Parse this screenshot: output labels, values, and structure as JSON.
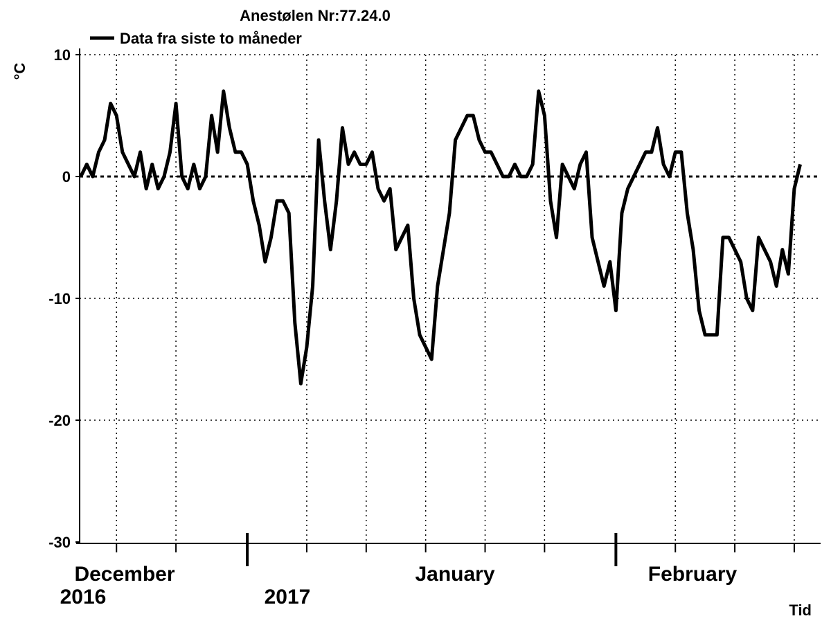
{
  "chart_data": {
    "type": "line",
    "title": "Anestølen Nr:77.24.0",
    "y_label": "°C",
    "x_label": "Tid",
    "x_labels": [
      "December",
      "2016",
      "2017",
      "January",
      "February"
    ],
    "xlim": [
      -14.1,
      48.1
    ],
    "ylim": [
      -30,
      10
    ],
    "yticks": [
      -30,
      -20,
      -10,
      0,
      10
    ],
    "xmajor": [
      0,
      31
    ],
    "xgrid": [
      -11,
      -6,
      5,
      10,
      15,
      20,
      25,
      36,
      41,
      46
    ],
    "grid": true,
    "x": [
      -14,
      -13.5,
      -13,
      -12.5,
      -12,
      -11.5,
      -11,
      -10.5,
      -10,
      -9.5,
      -9,
      -8.5,
      -8,
      -7.5,
      -7,
      -6.5,
      -6,
      -5.5,
      -5,
      -4.5,
      -4,
      -3.5,
      -3,
      -2.5,
      -2,
      -1.5,
      -1,
      -0.5,
      0,
      0.5,
      1,
      1.5,
      2,
      2.5,
      3,
      3.5,
      4,
      4.5,
      5,
      5.5,
      6,
      6.5,
      7,
      7.5,
      8,
      8.5,
      9,
      9.5,
      10,
      10.5,
      11,
      11.5,
      12,
      12.5,
      13,
      13.5,
      14,
      14.5,
      15,
      15.5,
      16,
      16.5,
      17,
      17.5,
      18,
      18.5,
      19,
      19.5,
      20,
      20.5,
      21,
      21.5,
      22,
      22.5,
      23,
      23.5,
      24,
      24.5,
      25,
      25.5,
      26,
      26.5,
      27,
      27.5,
      28,
      28.5,
      29,
      29.5,
      30,
      30.5,
      31,
      31.5,
      32,
      32.5,
      33,
      33.5,
      34,
      34.5,
      35,
      35.5,
      36,
      36.5,
      37,
      37.5,
      38,
      38.5,
      39,
      39.5,
      40,
      40.5,
      41,
      41.5,
      42,
      42.5,
      43,
      43.5,
      44,
      44.5,
      45,
      45.5,
      46,
      46.5
    ],
    "series": [
      {
        "name": "Data fra siste to måneder",
        "color": "#000000",
        "values": [
          0,
          1,
          0,
          2,
          3,
          6,
          5,
          2,
          1,
          0,
          2,
          -1,
          1,
          -1,
          0,
          2,
          6,
          0,
          -1,
          1,
          -1,
          0,
          5,
          2,
          7,
          4,
          2,
          2,
          1,
          -2,
          -4,
          -7,
          -5,
          -2,
          -2,
          -3,
          -12,
          -17,
          -14,
          -9,
          3,
          -2,
          -6,
          -2,
          4,
          1,
          2,
          1,
          1,
          2,
          -1,
          -2,
          -1,
          -6,
          -5,
          -4,
          -10,
          -13,
          -14,
          -15,
          -9,
          -6,
          -3,
          3,
          4,
          5,
          5,
          3,
          2,
          2,
          1,
          0,
          0,
          1,
          0,
          0,
          1,
          7,
          5,
          -2,
          -5,
          1,
          0,
          -1,
          1,
          2,
          -5,
          -7,
          -9,
          -7,
          -11,
          -3,
          -1,
          0,
          1,
          2,
          2,
          4,
          1,
          0,
          2,
          2,
          -3,
          -6,
          -11,
          -13,
          -13,
          -13,
          -5,
          -5,
          -6,
          -7,
          -10,
          -11,
          -5,
          -6,
          -7,
          -9,
          -6,
          -8,
          -1,
          1
        ]
      }
    ]
  }
}
